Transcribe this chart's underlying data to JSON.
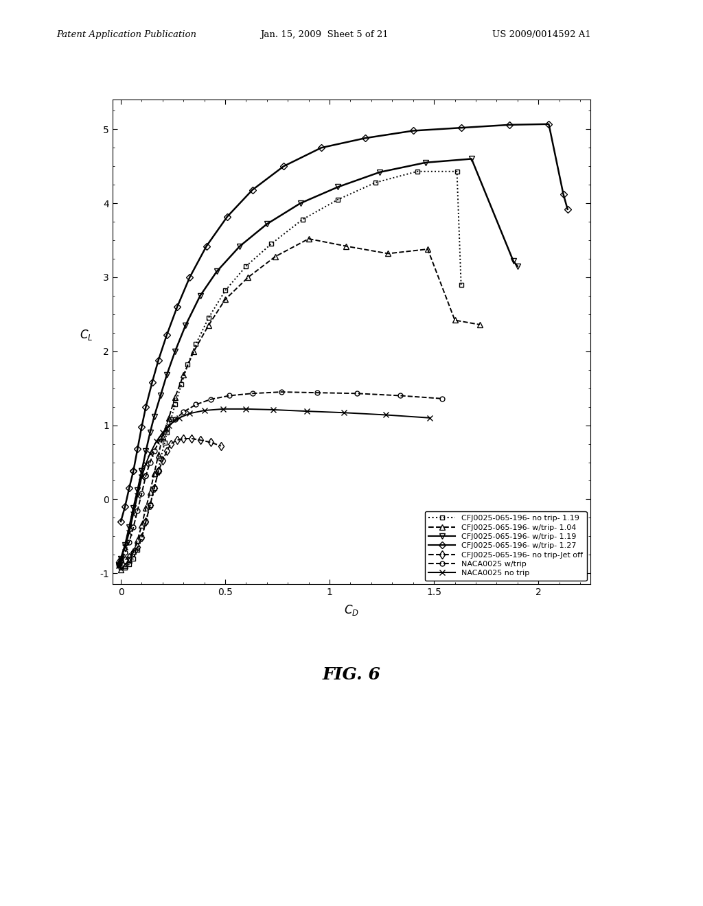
{
  "title": "FIG. 6",
  "header_left": "Patent Application Publication",
  "header_date": "Jan. 15, 2009  Sheet 5 of 21",
  "header_right": "US 2009/0014592 A1",
  "xlabel": "C_D",
  "ylabel": "C_L",
  "xlim": [
    -0.04,
    2.25
  ],
  "ylim": [
    -1.15,
    5.4
  ],
  "xticks": [
    0,
    0.5,
    1.0,
    1.5,
    2.0
  ],
  "yticks": [
    -1,
    0,
    1,
    2,
    3,
    4,
    5
  ],
  "series": [
    {
      "label": "CFJ0025-065-196- no trip- 1.19",
      "linestyle": "dotted",
      "marker": "s",
      "markersize": 5,
      "linewidth": 1.4,
      "x": [
        0.18,
        0.19,
        0.21,
        0.22,
        0.24,
        0.26,
        0.29,
        0.32,
        0.36,
        0.42,
        0.5,
        0.6,
        0.72,
        0.87,
        1.04,
        1.22,
        1.42,
        1.61,
        1.63
      ],
      "y": [
        0.38,
        0.55,
        0.76,
        0.9,
        1.08,
        1.28,
        1.55,
        1.82,
        2.1,
        2.45,
        2.82,
        3.15,
        3.45,
        3.78,
        4.05,
        4.28,
        4.43,
        4.43,
        2.9
      ]
    },
    {
      "label": "CFJ0025-065-196- w/trip- 1.04",
      "linestyle": "dashed",
      "marker": "^",
      "markersize": 6,
      "linewidth": 1.4,
      "x": [
        0.16,
        0.18,
        0.2,
        0.23,
        0.26,
        0.3,
        0.35,
        0.42,
        0.5,
        0.61,
        0.74,
        0.9,
        1.08,
        1.28,
        1.47,
        1.6,
        1.72
      ],
      "y": [
        0.35,
        0.6,
        0.85,
        1.1,
        1.38,
        1.68,
        2.0,
        2.35,
        2.7,
        3.0,
        3.28,
        3.52,
        3.42,
        3.32,
        3.38,
        2.42,
        2.36
      ]
    },
    {
      "label": "CFJ0025-065-196- w/trip- 1.19",
      "linestyle": "solid",
      "marker": "v",
      "markersize": 6,
      "linewidth": 1.8,
      "x": [
        0.1,
        0.12,
        0.14,
        0.16,
        0.19,
        0.22,
        0.26,
        0.31,
        0.38,
        0.46,
        0.57,
        0.7,
        0.86,
        1.04,
        1.24,
        1.46,
        1.68,
        1.88,
        1.9
      ],
      "y": [
        0.38,
        0.65,
        0.9,
        1.12,
        1.4,
        1.68,
        2.0,
        2.35,
        2.75,
        3.08,
        3.42,
        3.72,
        4.0,
        4.22,
        4.42,
        4.55,
        4.6,
        3.22,
        3.15
      ]
    },
    {
      "label": "CFJ0025-065-196- w/trip- 1.27",
      "linestyle": "solid",
      "marker": "D",
      "markersize": 5,
      "linewidth": 1.8,
      "x": [
        0.06,
        0.08,
        0.1,
        0.12,
        0.15,
        0.18,
        0.22,
        0.27,
        0.33,
        0.41,
        0.51,
        0.63,
        0.78,
        0.96,
        1.17,
        1.4,
        1.63,
        1.86,
        2.05,
        2.12,
        2.14
      ],
      "y": [
        0.38,
        0.68,
        0.98,
        1.25,
        1.58,
        1.88,
        2.22,
        2.6,
        3.0,
        3.42,
        3.82,
        4.18,
        4.5,
        4.75,
        4.88,
        4.98,
        5.02,
        5.06,
        5.07,
        4.12,
        3.92
      ]
    },
    {
      "label": "CFJ0025-065-196- no trip-Jet off",
      "linestyle": "dashed",
      "marker": "d",
      "markersize": 6,
      "linewidth": 1.4,
      "x": [
        0.18,
        0.2,
        0.22,
        0.24,
        0.27,
        0.3,
        0.34,
        0.38,
        0.43,
        0.48
      ],
      "y": [
        0.38,
        0.52,
        0.65,
        0.75,
        0.8,
        0.82,
        0.82,
        0.8,
        0.77,
        0.72
      ]
    },
    {
      "label": "NACA0025 w/trip",
      "linestyle": "dashed",
      "marker": "o",
      "markersize": 5,
      "linewidth": 1.4,
      "x": [
        0.12,
        0.14,
        0.16,
        0.19,
        0.22,
        0.26,
        0.3,
        0.36,
        0.43,
        0.52,
        0.63,
        0.77,
        0.94,
        1.13,
        1.34,
        1.54
      ],
      "y": [
        0.32,
        0.5,
        0.65,
        0.82,
        0.95,
        1.08,
        1.18,
        1.28,
        1.35,
        1.4,
        1.43,
        1.45,
        1.44,
        1.43,
        1.4,
        1.36
      ]
    },
    {
      "label": "NACA0025 no trip",
      "linestyle": "solid",
      "marker": "x",
      "markersize": 6,
      "linewidth": 1.4,
      "x": [
        0.1,
        0.12,
        0.14,
        0.17,
        0.2,
        0.23,
        0.28,
        0.33,
        0.4,
        0.49,
        0.6,
        0.73,
        0.89,
        1.07,
        1.27,
        1.48
      ],
      "y": [
        0.3,
        0.48,
        0.62,
        0.78,
        0.9,
        1.0,
        1.1,
        1.16,
        1.2,
        1.22,
        1.22,
        1.21,
        1.19,
        1.17,
        1.14,
        1.1
      ]
    }
  ],
  "series_neg": [
    {
      "x": [
        0.18,
        0.16,
        0.14,
        0.12,
        0.1,
        0.08,
        0.06,
        0.04,
        0.02,
        0.0,
        -0.01
      ],
      "y": [
        0.38,
        0.15,
        -0.08,
        -0.3,
        -0.52,
        -0.68,
        -0.8,
        -0.88,
        -0.92,
        -0.92,
        -0.9
      ]
    },
    {
      "x": [
        0.16,
        0.14,
        0.12,
        0.1,
        0.08,
        0.06,
        0.04,
        0.02,
        0.0
      ],
      "y": [
        0.35,
        0.1,
        -0.12,
        -0.35,
        -0.55,
        -0.7,
        -0.82,
        -0.9,
        -0.95
      ]
    },
    {
      "x": [
        0.1,
        0.08,
        0.06,
        0.04,
        0.02,
        0.0,
        -0.01
      ],
      "y": [
        0.38,
        0.12,
        -0.12,
        -0.38,
        -0.62,
        -0.8,
        -0.9
      ]
    },
    {
      "x": [
        0.06,
        0.04,
        0.02,
        0.0
      ],
      "y": [
        0.38,
        0.15,
        -0.1,
        -0.3
      ]
    },
    {
      "x": [
        0.18,
        0.16,
        0.14,
        0.12,
        0.1,
        0.08,
        0.06,
        0.04,
        0.02,
        0.0,
        -0.01
      ],
      "y": [
        0.38,
        0.15,
        -0.08,
        -0.3,
        -0.52,
        -0.65,
        -0.72,
        -0.78,
        -0.82,
        -0.84,
        -0.85
      ]
    },
    {
      "x": [
        0.12,
        0.1,
        0.08,
        0.06,
        0.04,
        0.02,
        0.0,
        -0.01
      ],
      "y": [
        0.32,
        0.08,
        -0.15,
        -0.38,
        -0.58,
        -0.72,
        -0.82,
        -0.88
      ]
    },
    {
      "x": [
        0.1,
        0.08,
        0.06,
        0.04,
        0.02,
        0.0,
        -0.01
      ],
      "y": [
        0.3,
        0.05,
        -0.2,
        -0.45,
        -0.65,
        -0.8,
        -0.9
      ]
    }
  ]
}
